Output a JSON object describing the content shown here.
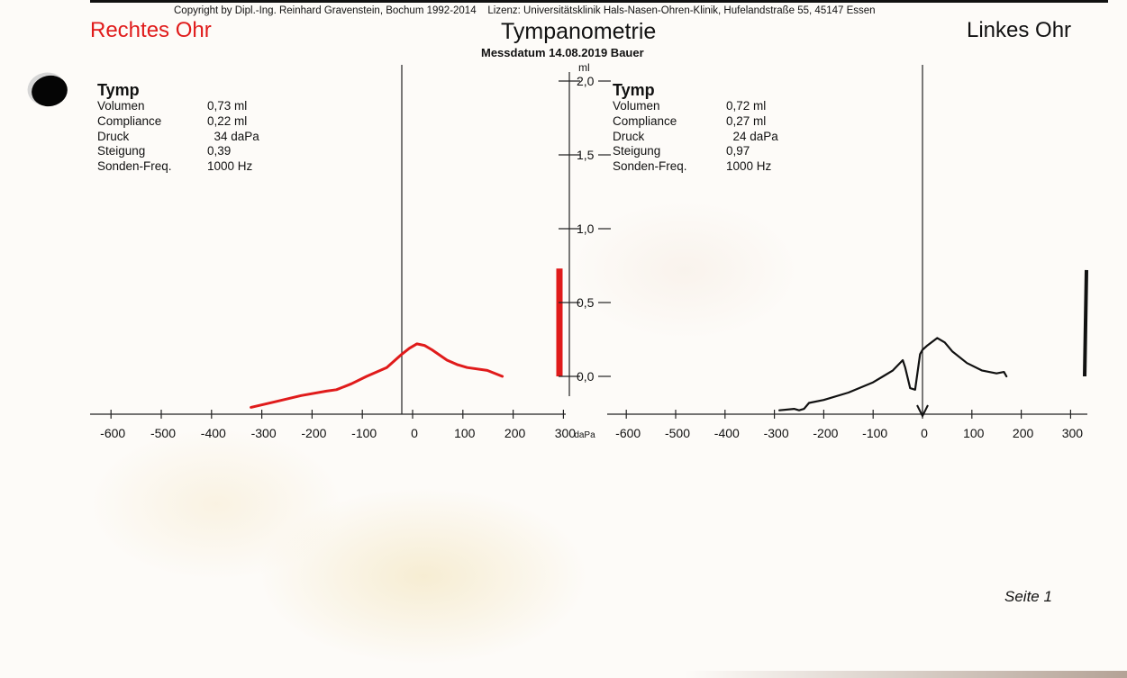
{
  "header": {
    "copyright": "Copyright by Dipl.-Ing. Reinhard Gravenstein, Bochum 1992-2014",
    "license": "Lizenz: Universitätsklinik Hals-Nasen-Ohren-Klinik, Hufelandstraße 55, 45147 Essen",
    "title": "Tympanometrie",
    "date_line": "Messdatum  14.08.2019  Bauer",
    "right_ear_label": "Rechtes Ohr",
    "left_ear_label": "Linkes Ohr"
  },
  "right_ear": {
    "heading": "Tymp",
    "params": [
      {
        "label": "Volumen",
        "value": "0,73 ml"
      },
      {
        "label": "Compliance",
        "value": "0,22 ml"
      },
      {
        "label": "Druck",
        "value": "  34 daPa"
      },
      {
        "label": "Steigung",
        "value": "0,39"
      },
      {
        "label": "Sonden-Freq.",
        "value": "1000 Hz"
      }
    ]
  },
  "left_ear": {
    "heading": "Tymp",
    "params": [
      {
        "label": "Volumen",
        "value": "0,72 ml"
      },
      {
        "label": "Compliance",
        "value": "0,27 ml"
      },
      {
        "label": "Druck",
        "value": "  24 daPa"
      },
      {
        "label": "Steigung",
        "value": "0,97"
      },
      {
        "label": "Sonden-Freq.",
        "value": "1000 Hz"
      }
    ]
  },
  "footer": {
    "page": "Seite 1"
  },
  "colors": {
    "right": "#e01b1b",
    "left": "#111111"
  },
  "chart_data": [
    {
      "type": "line",
      "name": "Rechtes Ohr",
      "x_unit": "daPa",
      "y_unit": "ml",
      "xlim": [
        -600,
        300
      ],
      "ylim": [
        -0.25,
        2.0
      ],
      "x_ticks": [
        "-600",
        "-500",
        "-400",
        "-300",
        "-200",
        "-100",
        "0",
        "100",
        "200",
        "300"
      ],
      "y_ticks": [
        "2,0",
        "1,5",
        "1,0",
        "0,5",
        "0,0"
      ],
      "volume_bar": 0.73,
      "series": [
        {
          "name": "Tympanogramm rechts",
          "x": [
            -300,
            -250,
            -200,
            -150,
            -130,
            -100,
            -70,
            -50,
            -30,
            0,
            15,
            30,
            45,
            60,
            90,
            110,
            130,
            170,
            200
          ],
          "y": [
            -0.21,
            -0.17,
            -0.13,
            -0.1,
            -0.09,
            -0.05,
            0.0,
            0.03,
            0.06,
            0.15,
            0.19,
            0.22,
            0.21,
            0.18,
            0.11,
            0.08,
            0.06,
            0.04,
            0.0
          ]
        }
      ]
    },
    {
      "type": "line",
      "name": "Linkes Ohr",
      "x_unit": "daPa",
      "y_unit": "ml",
      "xlim": [
        -600,
        300
      ],
      "ylim": [
        -0.25,
        2.0
      ],
      "x_ticks": [
        "-600",
        "-500",
        "-400",
        "-300",
        "-200",
        "-100",
        "0",
        "100",
        "200",
        "300"
      ],
      "y_ticks": [
        "2,0",
        "1,5",
        "1,0",
        "0,5",
        "0,0"
      ],
      "volume_bar": 0.72,
      "arrow_at": 0,
      "series": [
        {
          "name": "Tympanogramm links",
          "x": [
            -290,
            -260,
            -250,
            -240,
            -230,
            -200,
            -150,
            -100,
            -80,
            -60,
            -40,
            -35,
            -25,
            -15,
            -5,
            0,
            10,
            30,
            45,
            60,
            90,
            120,
            150,
            165,
            170
          ],
          "y": [
            -0.23,
            -0.22,
            -0.23,
            -0.22,
            -0.18,
            -0.16,
            -0.11,
            -0.04,
            0.0,
            0.04,
            0.11,
            0.06,
            -0.08,
            -0.09,
            0.15,
            0.18,
            0.21,
            0.26,
            0.23,
            0.17,
            0.09,
            0.04,
            0.02,
            0.03,
            0.0
          ]
        }
      ]
    }
  ]
}
